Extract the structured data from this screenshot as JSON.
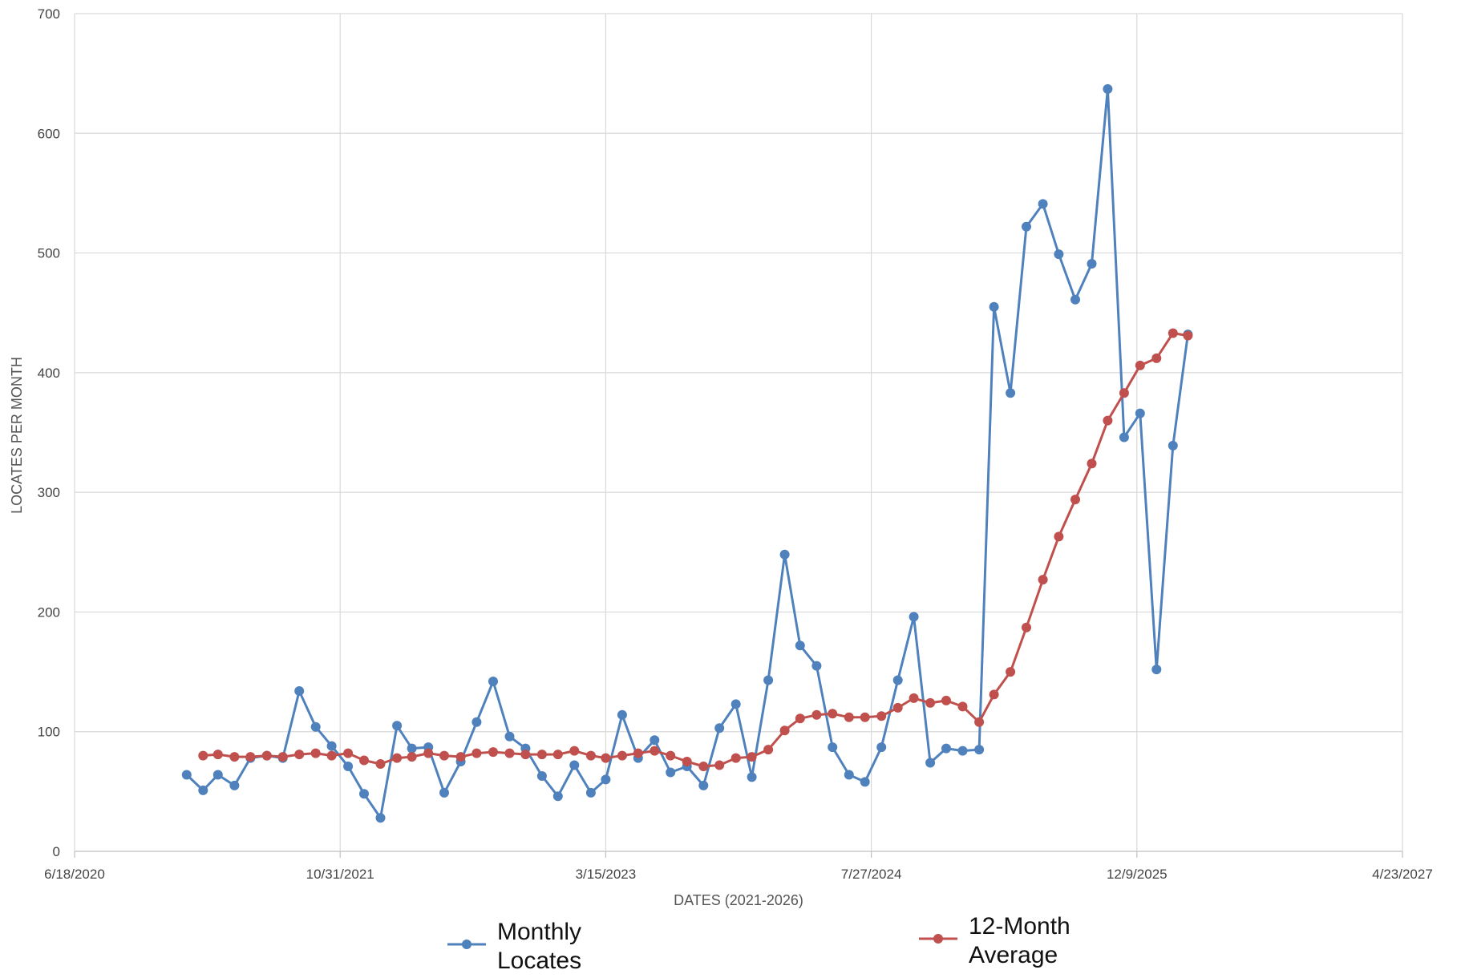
{
  "chart_data": {
    "type": "line",
    "xlabel": "DATES (2021-2026)",
    "ylabel": "LOCATES PER MONTH",
    "ylim": [
      0,
      700
    ],
    "yticks": [
      0,
      100,
      200,
      300,
      400,
      500,
      600,
      700
    ],
    "xlim": [
      "2020-06-18",
      "2027-04-23"
    ],
    "xtick_dates": [
      "2020-06-18",
      "2021-10-31",
      "2023-03-15",
      "2024-07-27",
      "2025-12-09",
      "2027-04-23"
    ],
    "xtick_labels": [
      "6/18/2020",
      "10/31/2021",
      "3/15/2023",
      "7/27/2024",
      "12/9/2025",
      "4/23/2027"
    ],
    "grid": true,
    "legend_position": "bottom",
    "series": [
      {
        "name": "Monthly Locates",
        "color": "#4f81bd",
        "start": "2021-01-15",
        "values": [
          64,
          51,
          64,
          55,
          78,
          80,
          78,
          134,
          104,
          88,
          71,
          48,
          28,
          105,
          86,
          87,
          49,
          75,
          108,
          142,
          96,
          86,
          63,
          46,
          72,
          49,
          60,
          114,
          78,
          93,
          66,
          71,
          55,
          103,
          123,
          62,
          143,
          248,
          172,
          155,
          87,
          64,
          58,
          87,
          143,
          196,
          74,
          86,
          84,
          85,
          455,
          383,
          522,
          541,
          499,
          461,
          491,
          637,
          346,
          366,
          152,
          339,
          432
        ]
      },
      {
        "name": "12-Month Average",
        "color": "#c0504d",
        "start": "2021-02-15",
        "values": [
          80,
          81,
          79,
          79,
          80,
          79,
          81,
          82,
          80,
          82,
          76,
          73,
          78,
          79,
          82,
          80,
          79,
          82,
          83,
          82,
          81,
          81,
          81,
          84,
          80,
          78,
          80,
          82,
          84,
          80,
          75,
          71,
          72,
          78,
          79,
          85,
          101,
          111,
          114,
          115,
          112,
          112,
          113,
          120,
          128,
          124,
          126,
          121,
          108,
          131,
          150,
          187,
          227,
          263,
          294,
          324,
          360,
          383,
          406,
          412,
          433,
          431
        ]
      }
    ]
  }
}
